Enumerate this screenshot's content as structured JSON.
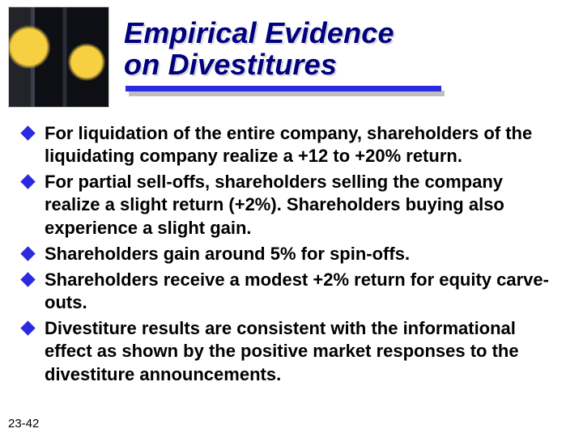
{
  "colors": {
    "title_color": "#000080",
    "title_shadow": "#d9d9d9",
    "rule_color": "#2a2ae0",
    "rule_shadow": "#bfbfbf",
    "bullet_color": "#2a2ae0",
    "text_color": "#000000",
    "background": "#ffffff"
  },
  "typography": {
    "title_fontsize": 36,
    "title_style": "bold italic",
    "body_fontsize": 22,
    "body_weight": "bold",
    "footer_fontsize": 15,
    "font_family": "Arial"
  },
  "layout": {
    "slide_w": 720,
    "slide_h": 540,
    "rule_width": 390,
    "rule_height": 7,
    "bullet_size": 13
  },
  "title_line1": "Empirical Evidence",
  "title_line2": "on Divestitures",
  "bullets": [
    "For liquidation of the entire company, shareholders of the liquidating company realize a +12 to +20% return.",
    "For partial sell-offs, shareholders selling the company realize a slight return (+2%).  Shareholders buying also experience a slight gain.",
    "Shareholders gain around 5% for spin-offs.",
    "Shareholders receive a modest +2% return for equity carve-outs.",
    "Divestiture results are consistent with the informational effect as shown by the positive market responses to the divestiture announcements."
  ],
  "footer": "23-42"
}
